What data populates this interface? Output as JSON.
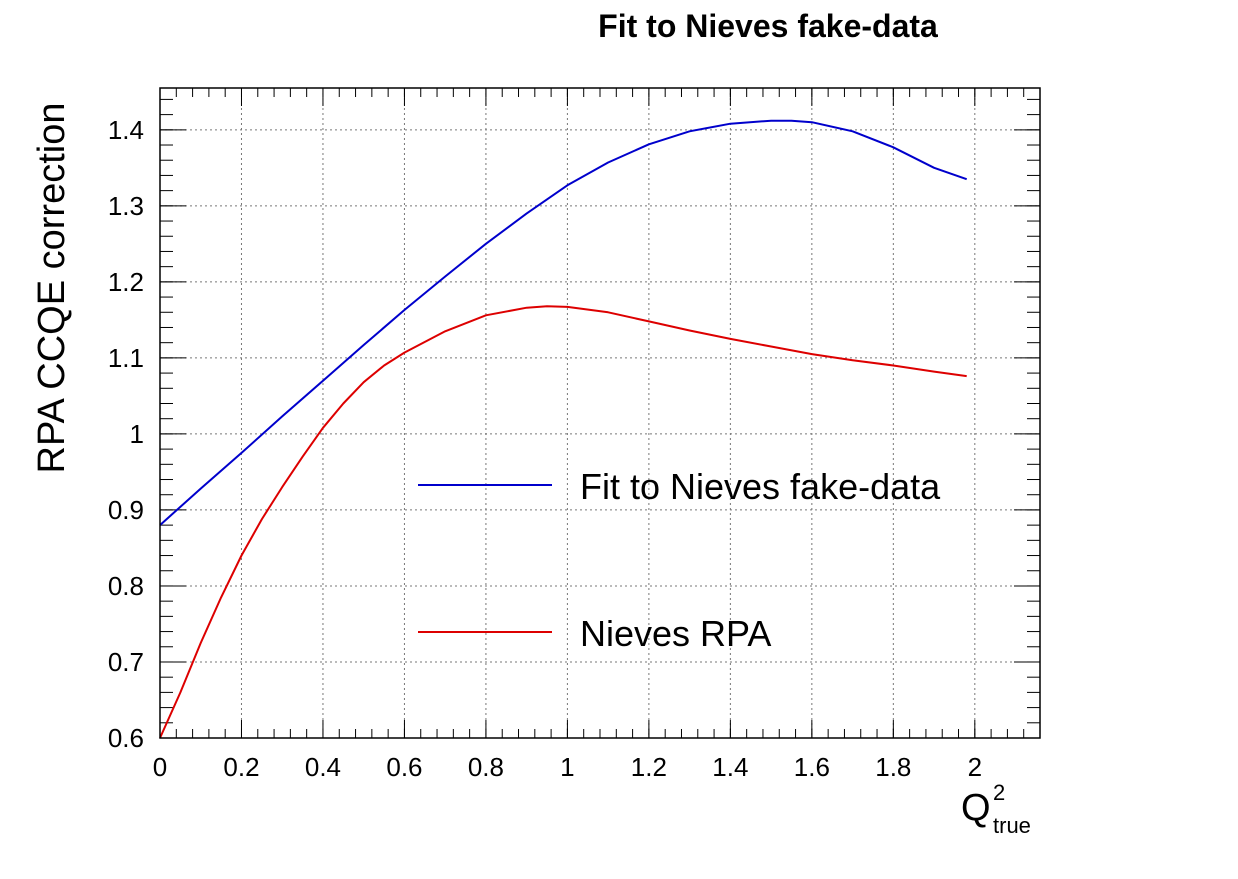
{
  "chart_data": {
    "type": "line",
    "title": "Fit to Nieves fake-data",
    "xlabel": "Q",
    "xlabel_sup": "2",
    "xlabel_sub": "true",
    "ylabel": "RPA CCQE correction",
    "xlim": [
      0,
      2.16
    ],
    "ylim": [
      0.6,
      1.455
    ],
    "xticks": [
      "0",
      "0.2",
      "0.4",
      "0.6",
      "0.8",
      "1",
      "1.2",
      "1.4",
      "1.6",
      "1.8",
      "2"
    ],
    "yticks": [
      "0.6",
      "0.7",
      "0.8",
      "0.9",
      "1",
      "1.1",
      "1.2",
      "1.3",
      "1.4"
    ],
    "grid": true,
    "legend_position": "right-center",
    "series": [
      {
        "name": "Fit to Nieves fake-data",
        "color": "#0000cc",
        "x": [
          0,
          0.1,
          0.2,
          0.3,
          0.4,
          0.5,
          0.6,
          0.7,
          0.8,
          0.9,
          1.0,
          1.1,
          1.2,
          1.3,
          1.4,
          1.5,
          1.55,
          1.6,
          1.7,
          1.8,
          1.9,
          1.98
        ],
        "y": [
          0.88,
          0.928,
          0.975,
          1.023,
          1.07,
          1.117,
          1.163,
          1.207,
          1.25,
          1.29,
          1.327,
          1.357,
          1.381,
          1.398,
          1.408,
          1.412,
          1.412,
          1.41,
          1.398,
          1.377,
          1.35,
          1.335
        ]
      },
      {
        "name": "Nieves RPA",
        "color": "#dd0000",
        "x": [
          0,
          0.05,
          0.1,
          0.15,
          0.2,
          0.25,
          0.3,
          0.35,
          0.4,
          0.45,
          0.5,
          0.55,
          0.6,
          0.7,
          0.8,
          0.9,
          0.95,
          1.0,
          1.1,
          1.2,
          1.3,
          1.4,
          1.5,
          1.6,
          1.7,
          1.8,
          1.9,
          1.98
        ],
        "y": [
          0.6,
          0.66,
          0.725,
          0.785,
          0.84,
          0.888,
          0.93,
          0.97,
          1.008,
          1.04,
          1.068,
          1.09,
          1.107,
          1.135,
          1.156,
          1.166,
          1.168,
          1.167,
          1.16,
          1.148,
          1.136,
          1.125,
          1.115,
          1.105,
          1.097,
          1.09,
          1.082,
          1.076
        ]
      }
    ]
  }
}
